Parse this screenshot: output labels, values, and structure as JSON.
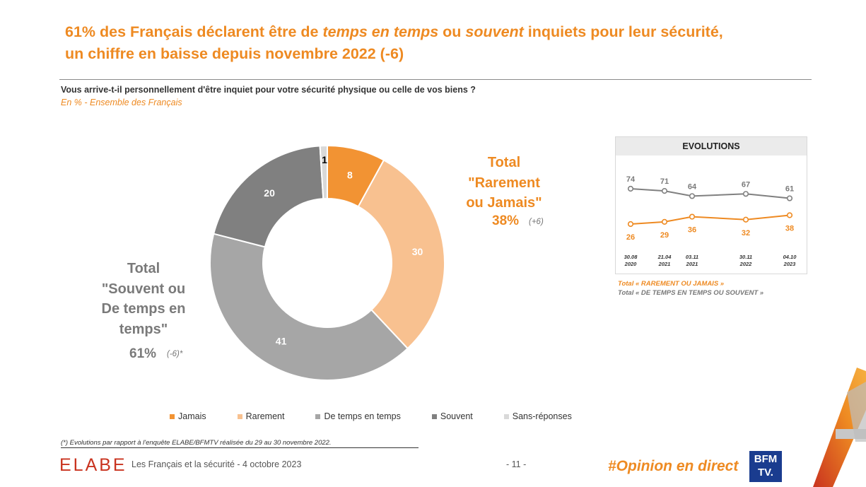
{
  "title": {
    "part1": "61% des Français déclarent être de ",
    "em1": "temps en temps",
    "part2": " ou ",
    "em2": "souvent",
    "part3": " inquiets pour leur sécurité,",
    "line2": "un chiffre en baisse depuis novembre 2022 (-6)"
  },
  "question": "Vous arrive-t-il personnellement d'être inquiet pour votre sécurité physique ou celle de vos biens ?",
  "subtitle": "En % - Ensemble des Français",
  "totals": {
    "rarement_jamais": {
      "lines": [
        "Total",
        "\"Rarement",
        "ou Jamais\""
      ],
      "pct": "38%",
      "change": "(+6)"
    },
    "souvent_temps": {
      "lines": [
        "Total",
        "\"Souvent ou",
        "De temps en",
        "temps\""
      ],
      "pct": "61%",
      "change": "(-6)*"
    }
  },
  "colors": {
    "jamais": "#f29333",
    "rarement": "#f8c190",
    "de_temps_en_temps": "#a6a6a6",
    "souvent": "#808080",
    "sans_reponses": "#d9d9d9",
    "accent": "#ee8a22"
  },
  "chart_data": [
    {
      "type": "pie",
      "variant": "donut",
      "categories": [
        "Jamais",
        "Rarement",
        "De temps en temps",
        "Souvent",
        "Sans-réponses"
      ],
      "values": [
        8,
        30,
        41,
        20,
        1
      ],
      "labels": [
        "8",
        "30",
        "41",
        "20",
        "1"
      ]
    },
    {
      "type": "line",
      "title": "EVOLUTIONS",
      "categories": [
        [
          "30.08",
          "2020"
        ],
        [
          "21.04",
          "2021"
        ],
        [
          "03.11",
          "2021"
        ],
        [
          "30.11",
          "2022"
        ],
        [
          "04.10",
          "2023"
        ]
      ],
      "series": [
        {
          "name": "Total « DE TEMPS EN TEMPS OU SOUVENT »",
          "values": [
            74,
            71,
            64,
            67,
            61
          ]
        },
        {
          "name": "Total « RAREMENT OU JAMAIS »",
          "values": [
            26,
            29,
            36,
            32,
            38
          ]
        }
      ]
    }
  ],
  "evolutions": {
    "title": "EVOLUTIONS",
    "legend": [
      "Total « RAREMENT OU JAMAIS »",
      "Total « DE TEMPS EN TEMPS OU SOUVENT »"
    ]
  },
  "legend": [
    "Jamais",
    "Rarement",
    "De temps en temps",
    "Souvent",
    "Sans-réponses"
  ],
  "footnote": "(*) Evolutions par rapport à l'enquête ELABE/BFMTV réalisée du 29 au 30 novembre 2022.",
  "footer": {
    "brand": "ELABE",
    "text": "Les Français et la sécurité - 4 octobre 2023",
    "page": "- 11 -",
    "hashtag": "#Opinion en direct",
    "partner_lines": [
      "BFM",
      "TV."
    ]
  }
}
